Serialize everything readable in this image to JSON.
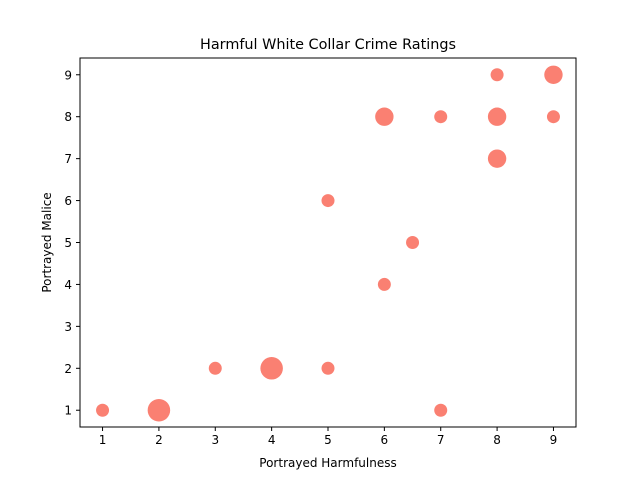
{
  "chart_data": {
    "type": "scatter",
    "title": "Harmful White Collar Crime Ratings",
    "xlabel": "Portrayed Harmfulness",
    "ylabel": "Portrayed Malice",
    "xlim": [
      0.6,
      9.4
    ],
    "ylim": [
      0.6,
      9.4
    ],
    "xticks": [
      1,
      2,
      3,
      4,
      5,
      6,
      7,
      8,
      9
    ],
    "yticks": [
      1,
      2,
      3,
      4,
      5,
      6,
      7,
      8,
      9
    ],
    "grid": false,
    "marker_color": "#fa8072",
    "points": [
      {
        "x": 1,
        "y": 1,
        "count": 1
      },
      {
        "x": 2,
        "y": 1,
        "count": 3
      },
      {
        "x": 7,
        "y": 1,
        "count": 1
      },
      {
        "x": 3,
        "y": 2,
        "count": 1
      },
      {
        "x": 4,
        "y": 2,
        "count": 3
      },
      {
        "x": 5,
        "y": 2,
        "count": 1
      },
      {
        "x": 6,
        "y": 4,
        "count": 1
      },
      {
        "x": 6.5,
        "y": 5,
        "count": 1
      },
      {
        "x": 5,
        "y": 6,
        "count": 1
      },
      {
        "x": 8,
        "y": 7,
        "count": 2
      },
      {
        "x": 6,
        "y": 8,
        "count": 2
      },
      {
        "x": 7,
        "y": 8,
        "count": 1
      },
      {
        "x": 8,
        "y": 8,
        "count": 2
      },
      {
        "x": 9,
        "y": 8,
        "count": 1
      },
      {
        "x": 8,
        "y": 9,
        "count": 1
      },
      {
        "x": 9,
        "y": 9,
        "count": 2
      }
    ]
  }
}
